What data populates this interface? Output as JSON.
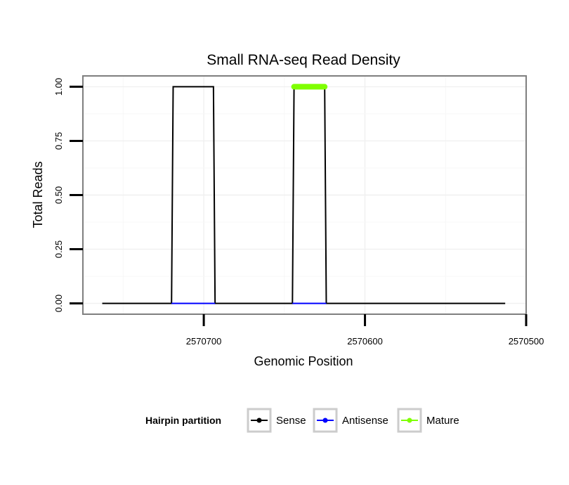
{
  "chart_data": {
    "type": "line",
    "title": "Small RNA-seq Read Density",
    "xlabel": "Genomic Position",
    "ylabel": "Total Reads",
    "x_reversed": true,
    "xlim": [
      2570500,
      2570775
    ],
    "ylim": [
      -0.05,
      1.05
    ],
    "x_ticks": [
      2570700,
      2570600,
      2570500
    ],
    "x_tick_labels": [
      "2570700",
      "2570600",
      "2570500"
    ],
    "y_ticks": [
      0,
      0.25,
      0.5,
      0.75,
      1
    ],
    "y_tick_labels": [
      "0.00",
      "0.25",
      "0.50",
      "0.75",
      "1.00"
    ],
    "grid": true,
    "legend_position": "bottom",
    "legend_title": "Hairpin partition",
    "series": [
      {
        "name": "Sense",
        "color": "#000000",
        "x": [
          2570763,
          2570720,
          2570719,
          2570694,
          2570693,
          2570645,
          2570644,
          2570625,
          2570624,
          2570513
        ],
        "y": [
          0,
          0,
          1,
          1,
          0,
          0,
          1,
          1,
          0,
          0
        ]
      },
      {
        "name": "Antisense",
        "color": "#0000ff",
        "x": [
          2570720,
          2570693,
          2570645,
          2570624
        ],
        "y": [
          0,
          0,
          0,
          0
        ],
        "segments": [
          [
            0,
            1
          ],
          [
            2,
            3
          ]
        ]
      },
      {
        "name": "Mature",
        "color": "#7fff00",
        "x": [
          2570644,
          2570625
        ],
        "y": [
          1,
          1
        ]
      }
    ]
  }
}
